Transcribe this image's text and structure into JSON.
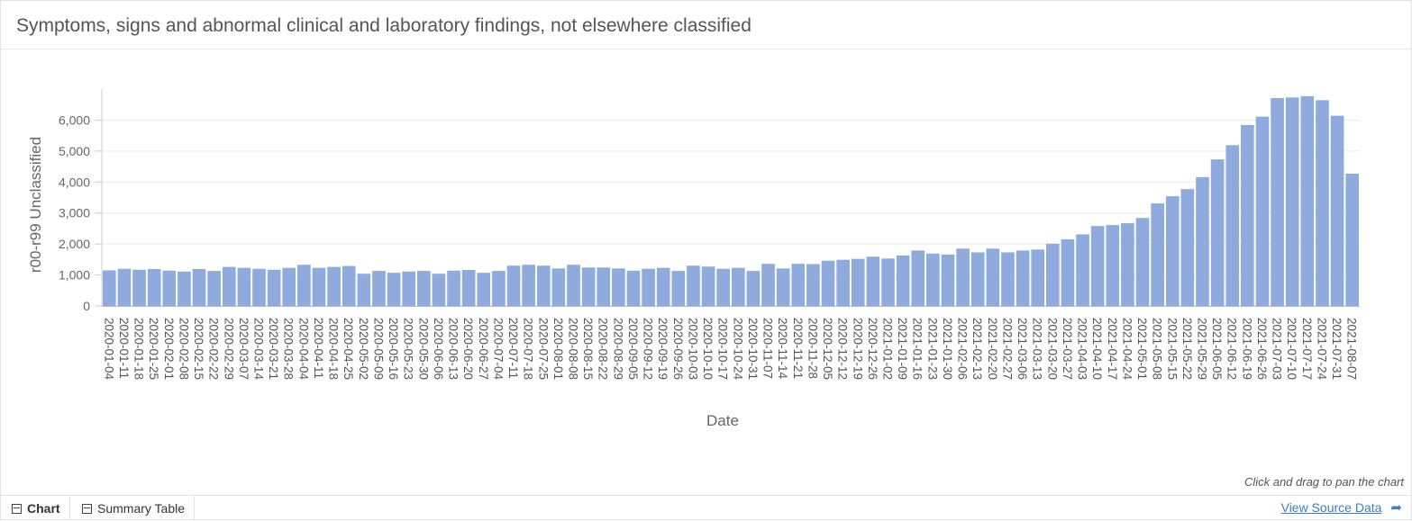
{
  "header": {
    "title": "Symptoms, signs and abnormal clinical and laboratory findings, not elsewhere classified"
  },
  "hint": "Click and drag to pan the chart",
  "footer": {
    "tabs": [
      {
        "label": "Chart",
        "icon": "chart-icon",
        "active": true
      },
      {
        "label": "Summary Table",
        "icon": "table-icon",
        "active": false
      }
    ],
    "source_link": "View Source Data",
    "source_icon": "share-arrow-icon"
  },
  "chart_data": {
    "type": "bar",
    "xlabel": "Date",
    "ylabel": "r00-r99 Unclassified",
    "ylim": [
      0,
      7000
    ],
    "yticks": [
      0,
      1000,
      2000,
      3000,
      4000,
      5000,
      6000
    ],
    "ytick_labels": [
      "0",
      "1,000",
      "2,000",
      "3,000",
      "4,000",
      "5,000",
      "6,000"
    ],
    "grid": true,
    "legend": "none",
    "bar_color": "#8faadc",
    "categories": [
      "2020-01-04",
      "2020-01-11",
      "2020-01-18",
      "2020-01-25",
      "2020-02-01",
      "2020-02-08",
      "2020-02-15",
      "2020-02-22",
      "2020-02-29",
      "2020-03-07",
      "2020-03-14",
      "2020-03-21",
      "2020-03-28",
      "2020-04-04",
      "2020-04-11",
      "2020-04-18",
      "2020-04-25",
      "2020-05-02",
      "2020-05-09",
      "2020-05-16",
      "2020-05-23",
      "2020-05-30",
      "2020-06-06",
      "2020-06-13",
      "2020-06-20",
      "2020-06-27",
      "2020-07-04",
      "2020-07-11",
      "2020-07-18",
      "2020-07-25",
      "2020-08-01",
      "2020-08-08",
      "2020-08-15",
      "2020-08-22",
      "2020-08-29",
      "2020-09-05",
      "2020-09-12",
      "2020-09-19",
      "2020-09-26",
      "2020-10-03",
      "2020-10-10",
      "2020-10-17",
      "2020-10-24",
      "2020-10-31",
      "2020-11-07",
      "2020-11-14",
      "2020-11-21",
      "2020-11-28",
      "2020-12-05",
      "2020-12-12",
      "2020-12-19",
      "2020-12-26",
      "2021-01-02",
      "2021-01-09",
      "2021-01-16",
      "2021-01-23",
      "2021-01-30",
      "2021-02-06",
      "2021-02-13",
      "2021-02-20",
      "2021-02-27",
      "2021-03-06",
      "2021-03-13",
      "2021-03-20",
      "2021-03-27",
      "2021-04-03",
      "2021-04-10",
      "2021-04-17",
      "2021-04-24",
      "2021-05-01",
      "2021-05-08",
      "2021-05-15",
      "2021-05-22",
      "2021-05-29",
      "2021-06-05",
      "2021-06-12",
      "2021-06-19",
      "2021-06-26",
      "2021-07-03",
      "2021-07-10",
      "2021-07-17",
      "2021-07-24",
      "2021-07-31",
      "2021-08-07"
    ],
    "tick_labels": [
      "2020-01-04",
      "2020-01-11",
      "2020-01-18",
      "2020-01-25",
      "2020-02-01",
      "2020-02-08",
      "2020-02-15",
      "2020-02-22",
      "2020-02-29",
      "2020-03-07",
      "2020-03-14",
      "2020-03-21",
      "2020-03-28",
      "2020-04-04",
      "2020-04-11",
      "2020-04-18",
      "2020-04-25",
      "2020-05-02",
      "2020-05-09",
      "2020-05-16",
      "2020-05-23",
      "2020-05-30",
      "2020-06-06",
      "2020-06-13",
      "2020-06-20",
      "2020-06-27",
      "2020-07-04",
      "2020-07-11",
      "2020-07-18",
      "2020-07-25",
      "2020-08-01",
      "2020-08-08",
      "2020-08-15",
      "2020-08-22",
      "2020-08-29",
      "2020-09-05",
      "2020-09-12",
      "2020-09-19",
      "2020-09-26",
      "2020-10-03",
      "2020-10-10",
      "2020-10-17",
      "2020-10-24",
      "2020-10-31",
      "2020-11-07",
      "2020-11-14",
      "2020-11-21",
      "2020-11-28",
      "2020-12-05",
      "2020-12-12",
      "2020-12-19",
      "2020-12-26",
      "2021-01-02",
      "2021-01-09",
      "2021-01-16",
      "2021-01-23",
      "2021-01-30",
      "2021-02-06",
      "2021-02-13",
      "2021-02-20",
      "2021-02-27",
      "2021-03-06",
      "2021-03-13",
      "2021-03-20",
      "2021-03-27",
      "2021-04-03",
      "2021-04-10",
      "2021-04-17",
      "2021-04-24",
      "2021-05-01",
      "2021-05-08",
      "2021-05-15",
      "2021-05-22",
      "2021-05-29",
      "2021-06-05",
      "2021-06-12",
      "2021-06-19",
      "2021-06-26",
      "2021-07-03",
      "2021-07-10",
      "2021-07-17",
      "2021-07-24",
      "2021-07-31",
      "2021-08-07"
    ],
    "values": [
      1150,
      1200,
      1170,
      1190,
      1140,
      1110,
      1190,
      1130,
      1260,
      1230,
      1200,
      1170,
      1230,
      1330,
      1230,
      1260,
      1290,
      1040,
      1130,
      1070,
      1110,
      1130,
      1040,
      1140,
      1160,
      1070,
      1130,
      1300,
      1330,
      1300,
      1210,
      1330,
      1240,
      1240,
      1210,
      1140,
      1200,
      1230,
      1130,
      1300,
      1270,
      1200,
      1230,
      1130,
      1360,
      1210,
      1360,
      1350,
      1460,
      1490,
      1520,
      1590,
      1530,
      1630,
      1790,
      1690,
      1660,
      1850,
      1730,
      1850,
      1730,
      1790,
      1820,
      2010,
      2150,
      2310,
      2580,
      2610,
      2670,
      2840,
      3310,
      3540,
      3770,
      4160,
      4730,
      5190,
      5840,
      6110,
      6710,
      6730,
      6770,
      6640,
      6140,
      4270
    ]
  }
}
